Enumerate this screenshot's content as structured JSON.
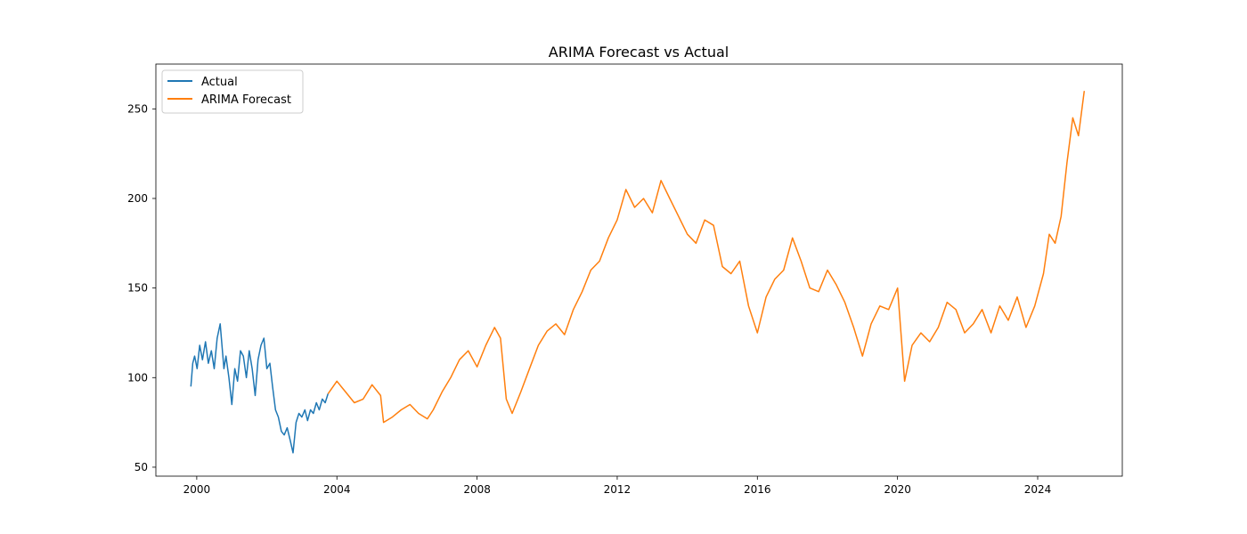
{
  "chart_data": {
    "type": "line",
    "title": "ARIMA Forecast vs Actual",
    "xlabel": "",
    "ylabel": "",
    "x_ticks": [
      "2000",
      "2004",
      "2008",
      "2012",
      "2016",
      "2020",
      "2024"
    ],
    "y_ticks": [
      50,
      100,
      150,
      200,
      250
    ],
    "xlim": [
      "1998-11",
      "2026-06"
    ],
    "ylim": [
      45,
      275
    ],
    "grid": false,
    "legend_position": "top-left",
    "series": [
      {
        "name": "Actual",
        "color": "#1f77b4",
        "points": [
          [
            "1999-11-01",
            95
          ],
          [
            "1999-11-20",
            108
          ],
          [
            "1999-12-10",
            112
          ],
          [
            "2000-01-05",
            105
          ],
          [
            "2000-02-01",
            118
          ],
          [
            "2000-03-01",
            110
          ],
          [
            "2000-04-01",
            120
          ],
          [
            "2000-05-01",
            108
          ],
          [
            "2000-06-01",
            115
          ],
          [
            "2000-07-01",
            105
          ],
          [
            "2000-08-01",
            122
          ],
          [
            "2000-09-01",
            130
          ],
          [
            "2000-09-20",
            118
          ],
          [
            "2000-10-10",
            105
          ],
          [
            "2000-11-01",
            112
          ],
          [
            "2000-12-01",
            100
          ],
          [
            "2001-01-01",
            85
          ],
          [
            "2001-02-01",
            105
          ],
          [
            "2001-03-01",
            98
          ],
          [
            "2001-04-01",
            115
          ],
          [
            "2001-05-01",
            112
          ],
          [
            "2001-06-01",
            100
          ],
          [
            "2001-07-01",
            115
          ],
          [
            "2001-08-01",
            105
          ],
          [
            "2001-09-01",
            90
          ],
          [
            "2001-10-01",
            110
          ],
          [
            "2001-11-01",
            118
          ],
          [
            "2001-12-01",
            122
          ],
          [
            "2002-01-01",
            105
          ],
          [
            "2002-02-01",
            108
          ],
          [
            "2002-03-01",
            95
          ],
          [
            "2002-04-01",
            82
          ],
          [
            "2002-05-01",
            78
          ],
          [
            "2002-06-01",
            70
          ],
          [
            "2002-07-01",
            68
          ],
          [
            "2002-08-01",
            72
          ],
          [
            "2002-09-01",
            65
          ],
          [
            "2002-10-01",
            58
          ],
          [
            "2002-11-01",
            75
          ],
          [
            "2002-12-01",
            80
          ],
          [
            "2003-01-01",
            78
          ],
          [
            "2003-02-01",
            82
          ],
          [
            "2003-03-01",
            76
          ],
          [
            "2003-04-01",
            82
          ],
          [
            "2003-05-01",
            80
          ],
          [
            "2003-06-01",
            86
          ],
          [
            "2003-07-01",
            82
          ],
          [
            "2003-08-01",
            88
          ],
          [
            "2003-09-01",
            86
          ],
          [
            "2003-10-01",
            91
          ]
        ]
      },
      {
        "name": "ARIMA Forecast",
        "color": "#ff7f0e",
        "points": [
          [
            "2003-10-01",
            91
          ],
          [
            "2004-01-01",
            98
          ],
          [
            "2004-04-01",
            92
          ],
          [
            "2004-07-01",
            86
          ],
          [
            "2004-10-01",
            88
          ],
          [
            "2005-01-01",
            96
          ],
          [
            "2005-04-01",
            90
          ],
          [
            "2005-05-01",
            75
          ],
          [
            "2005-08-01",
            78
          ],
          [
            "2005-11-01",
            82
          ],
          [
            "2006-02-01",
            85
          ],
          [
            "2006-05-01",
            80
          ],
          [
            "2006-08-01",
            77
          ],
          [
            "2006-10-01",
            82
          ],
          [
            "2007-01-01",
            92
          ],
          [
            "2007-04-01",
            100
          ],
          [
            "2007-07-01",
            110
          ],
          [
            "2007-10-01",
            115
          ],
          [
            "2008-01-01",
            106
          ],
          [
            "2008-04-01",
            118
          ],
          [
            "2008-07-01",
            128
          ],
          [
            "2008-09-01",
            122
          ],
          [
            "2008-11-01",
            88
          ],
          [
            "2009-01-01",
            80
          ],
          [
            "2009-04-01",
            92
          ],
          [
            "2009-07-01",
            105
          ],
          [
            "2009-10-01",
            118
          ],
          [
            "2010-01-01",
            126
          ],
          [
            "2010-04-01",
            130
          ],
          [
            "2010-07-01",
            124
          ],
          [
            "2010-10-01",
            138
          ],
          [
            "2011-01-01",
            148
          ],
          [
            "2011-04-01",
            160
          ],
          [
            "2011-07-01",
            165
          ],
          [
            "2011-10-01",
            178
          ],
          [
            "2012-01-01",
            188
          ],
          [
            "2012-04-01",
            205
          ],
          [
            "2012-07-01",
            195
          ],
          [
            "2012-10-01",
            200
          ],
          [
            "2013-01-01",
            192
          ],
          [
            "2013-04-01",
            210
          ],
          [
            "2013-07-01",
            200
          ],
          [
            "2013-10-01",
            190
          ],
          [
            "2014-01-01",
            180
          ],
          [
            "2014-04-01",
            175
          ],
          [
            "2014-07-01",
            188
          ],
          [
            "2014-10-01",
            185
          ],
          [
            "2015-01-01",
            162
          ],
          [
            "2015-04-01",
            158
          ],
          [
            "2015-07-01",
            165
          ],
          [
            "2015-10-01",
            140
          ],
          [
            "2016-01-01",
            125
          ],
          [
            "2016-04-01",
            145
          ],
          [
            "2016-07-01",
            155
          ],
          [
            "2016-10-01",
            160
          ],
          [
            "2017-01-01",
            178
          ],
          [
            "2017-04-01",
            165
          ],
          [
            "2017-07-01",
            150
          ],
          [
            "2017-10-01",
            148
          ],
          [
            "2018-01-01",
            160
          ],
          [
            "2018-04-01",
            152
          ],
          [
            "2018-07-01",
            142
          ],
          [
            "2018-10-01",
            128
          ],
          [
            "2019-01-01",
            112
          ],
          [
            "2019-04-01",
            130
          ],
          [
            "2019-07-01",
            140
          ],
          [
            "2019-10-01",
            138
          ],
          [
            "2020-01-01",
            150
          ],
          [
            "2020-03-15",
            98
          ],
          [
            "2020-06-01",
            118
          ],
          [
            "2020-09-01",
            125
          ],
          [
            "2020-12-01",
            120
          ],
          [
            "2021-03-01",
            128
          ],
          [
            "2021-06-01",
            142
          ],
          [
            "2021-09-01",
            138
          ],
          [
            "2021-12-01",
            125
          ],
          [
            "2022-03-01",
            130
          ],
          [
            "2022-06-01",
            138
          ],
          [
            "2022-09-01",
            125
          ],
          [
            "2022-12-01",
            140
          ],
          [
            "2023-03-01",
            132
          ],
          [
            "2023-06-01",
            145
          ],
          [
            "2023-09-01",
            128
          ],
          [
            "2023-12-01",
            140
          ],
          [
            "2024-03-01",
            158
          ],
          [
            "2024-05-01",
            180
          ],
          [
            "2024-07-01",
            175
          ],
          [
            "2024-09-01",
            190
          ],
          [
            "2024-11-01",
            220
          ],
          [
            "2025-01-01",
            245
          ],
          [
            "2025-03-01",
            235
          ],
          [
            "2025-05-01",
            260
          ]
        ]
      }
    ]
  }
}
